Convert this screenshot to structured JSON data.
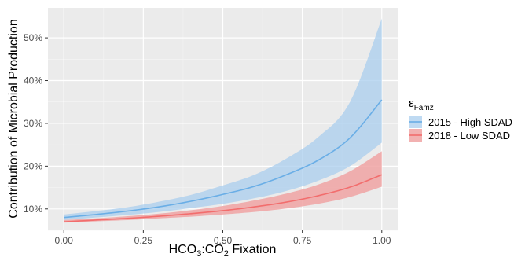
{
  "chart_data": {
    "type": "line",
    "title": "",
    "xlabel": "HCO3:CO2 Fixation",
    "xlabel_parts": {
      "a": "HCO",
      "a_sub": "3",
      "b": ":CO",
      "b_sub": "2",
      "c": " Fixation"
    },
    "ylabel": "Contribution of Microbial Production",
    "x_ticks": [
      "0.00",
      "0.25",
      "0.50",
      "0.75",
      "1.00"
    ],
    "y_ticks": [
      "10%",
      "20%",
      "30%",
      "40%",
      "50%"
    ],
    "xlim": [
      -0.05,
      1.05
    ],
    "ylim": [
      0.05,
      0.57
    ],
    "x_tick_values": [
      0,
      0.25,
      0.5,
      0.75,
      1.0
    ],
    "y_tick_values": [
      0.1,
      0.2,
      0.3,
      0.4,
      0.5
    ],
    "grid": true,
    "legend": {
      "title_symbol": "ε",
      "title_sub": "Famz",
      "placement": "right"
    },
    "series": [
      {
        "name": "2015 - High SDAD",
        "color": "#6aaee6",
        "fill": "#a9cdee",
        "x": [
          0,
          0.1,
          0.2,
          0.3,
          0.4,
          0.5,
          0.6,
          0.7,
          0.8,
          0.9,
          1.0
        ],
        "values": [
          0.08,
          0.087,
          0.095,
          0.105,
          0.118,
          0.134,
          0.153,
          0.18,
          0.214,
          0.266,
          0.355
        ],
        "lower": [
          0.074,
          0.08,
          0.086,
          0.093,
          0.102,
          0.112,
          0.125,
          0.142,
          0.166,
          0.2,
          0.255
        ],
        "upper": [
          0.087,
          0.095,
          0.104,
          0.117,
          0.133,
          0.155,
          0.18,
          0.218,
          0.268,
          0.35,
          0.545
        ]
      },
      {
        "name": "2018 - Low SDAD",
        "color": "#f26d6d",
        "fill": "#f0a3a3",
        "x": [
          0,
          0.1,
          0.2,
          0.3,
          0.4,
          0.5,
          0.6,
          0.7,
          0.8,
          0.9,
          1.0
        ],
        "values": [
          0.07,
          0.074,
          0.078,
          0.083,
          0.089,
          0.096,
          0.105,
          0.116,
          0.131,
          0.151,
          0.18
        ],
        "lower": [
          0.068,
          0.071,
          0.074,
          0.078,
          0.082,
          0.087,
          0.093,
          0.101,
          0.112,
          0.128,
          0.152
        ],
        "upper": [
          0.074,
          0.078,
          0.083,
          0.089,
          0.097,
          0.107,
          0.12,
          0.136,
          0.157,
          0.188,
          0.235
        ]
      }
    ]
  }
}
